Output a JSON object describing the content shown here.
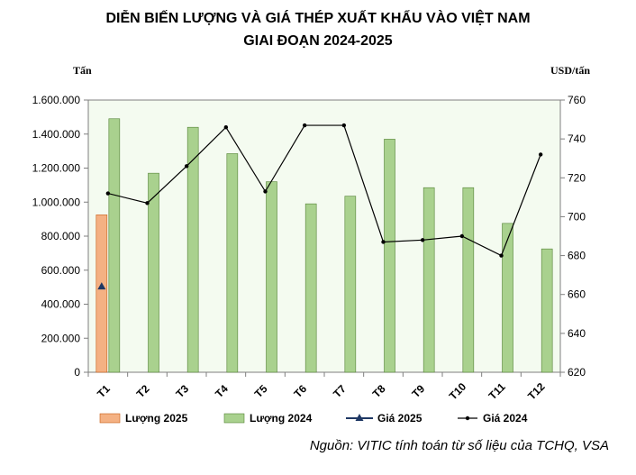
{
  "title_line1": "DIỄN BIẾN LƯỢNG VÀ GIÁ THÉP XUẤT KHẨU VÀO VIỆT NAM",
  "title_line2": "GIAI ĐOẠN 2024-2025",
  "left_unit": "Tấn",
  "right_unit": "USD/tấn",
  "source": "Nguồn: VITIC tính toán từ số liệu của TCHQ, VSA",
  "colors": {
    "bar_2025": "#f4b183",
    "bar_2024": "#a9d18e",
    "plot_bg": "#f4fbf0",
    "price_2025": "#1f3864",
    "price_2024": "#000000"
  },
  "chart_data": {
    "type": "bar+line",
    "categories": [
      "T1",
      "T2",
      "T3",
      "T4",
      "T5",
      "T6",
      "T7",
      "T8",
      "T9",
      "T10",
      "T11",
      "T12"
    ],
    "left_axis": {
      "range": [
        0,
        1600000
      ],
      "ticks": [
        0,
        200000,
        400000,
        600000,
        800000,
        1000000,
        1200000,
        1400000,
        1600000
      ],
      "tick_labels": [
        "0",
        "200.000",
        "400.000",
        "600.000",
        "800.000",
        "1.000.000",
        "1.200.000",
        "1.400.000",
        "1.600.000"
      ]
    },
    "right_axis": {
      "range": [
        620,
        760
      ],
      "ticks": [
        620,
        640,
        660,
        680,
        700,
        720,
        740,
        760
      ],
      "tick_labels": [
        "620",
        "640",
        "660",
        "680",
        "700",
        "720",
        "740",
        "760"
      ]
    },
    "grid": false,
    "legend_position": "bottom",
    "series": [
      {
        "name": "Lượng 2025",
        "kind": "bar",
        "axis": "left",
        "values": [
          925000,
          null,
          null,
          null,
          null,
          null,
          null,
          null,
          null,
          null,
          null,
          null
        ]
      },
      {
        "name": "Lượng 2024",
        "kind": "bar",
        "axis": "left",
        "values": [
          1490000,
          1170000,
          1440000,
          1285000,
          1120000,
          990000,
          1035000,
          1370000,
          1085000,
          1085000,
          875000,
          725000
        ]
      },
      {
        "name": "Giá 2025",
        "kind": "line",
        "axis": "right",
        "values": [
          664,
          null,
          null,
          null,
          null,
          null,
          null,
          null,
          null,
          null,
          null,
          null
        ]
      },
      {
        "name": "Giá 2024",
        "kind": "line",
        "axis": "right",
        "values": [
          712,
          707,
          726,
          746,
          713,
          747,
          747,
          687,
          688,
          690,
          680,
          732
        ]
      }
    ]
  }
}
